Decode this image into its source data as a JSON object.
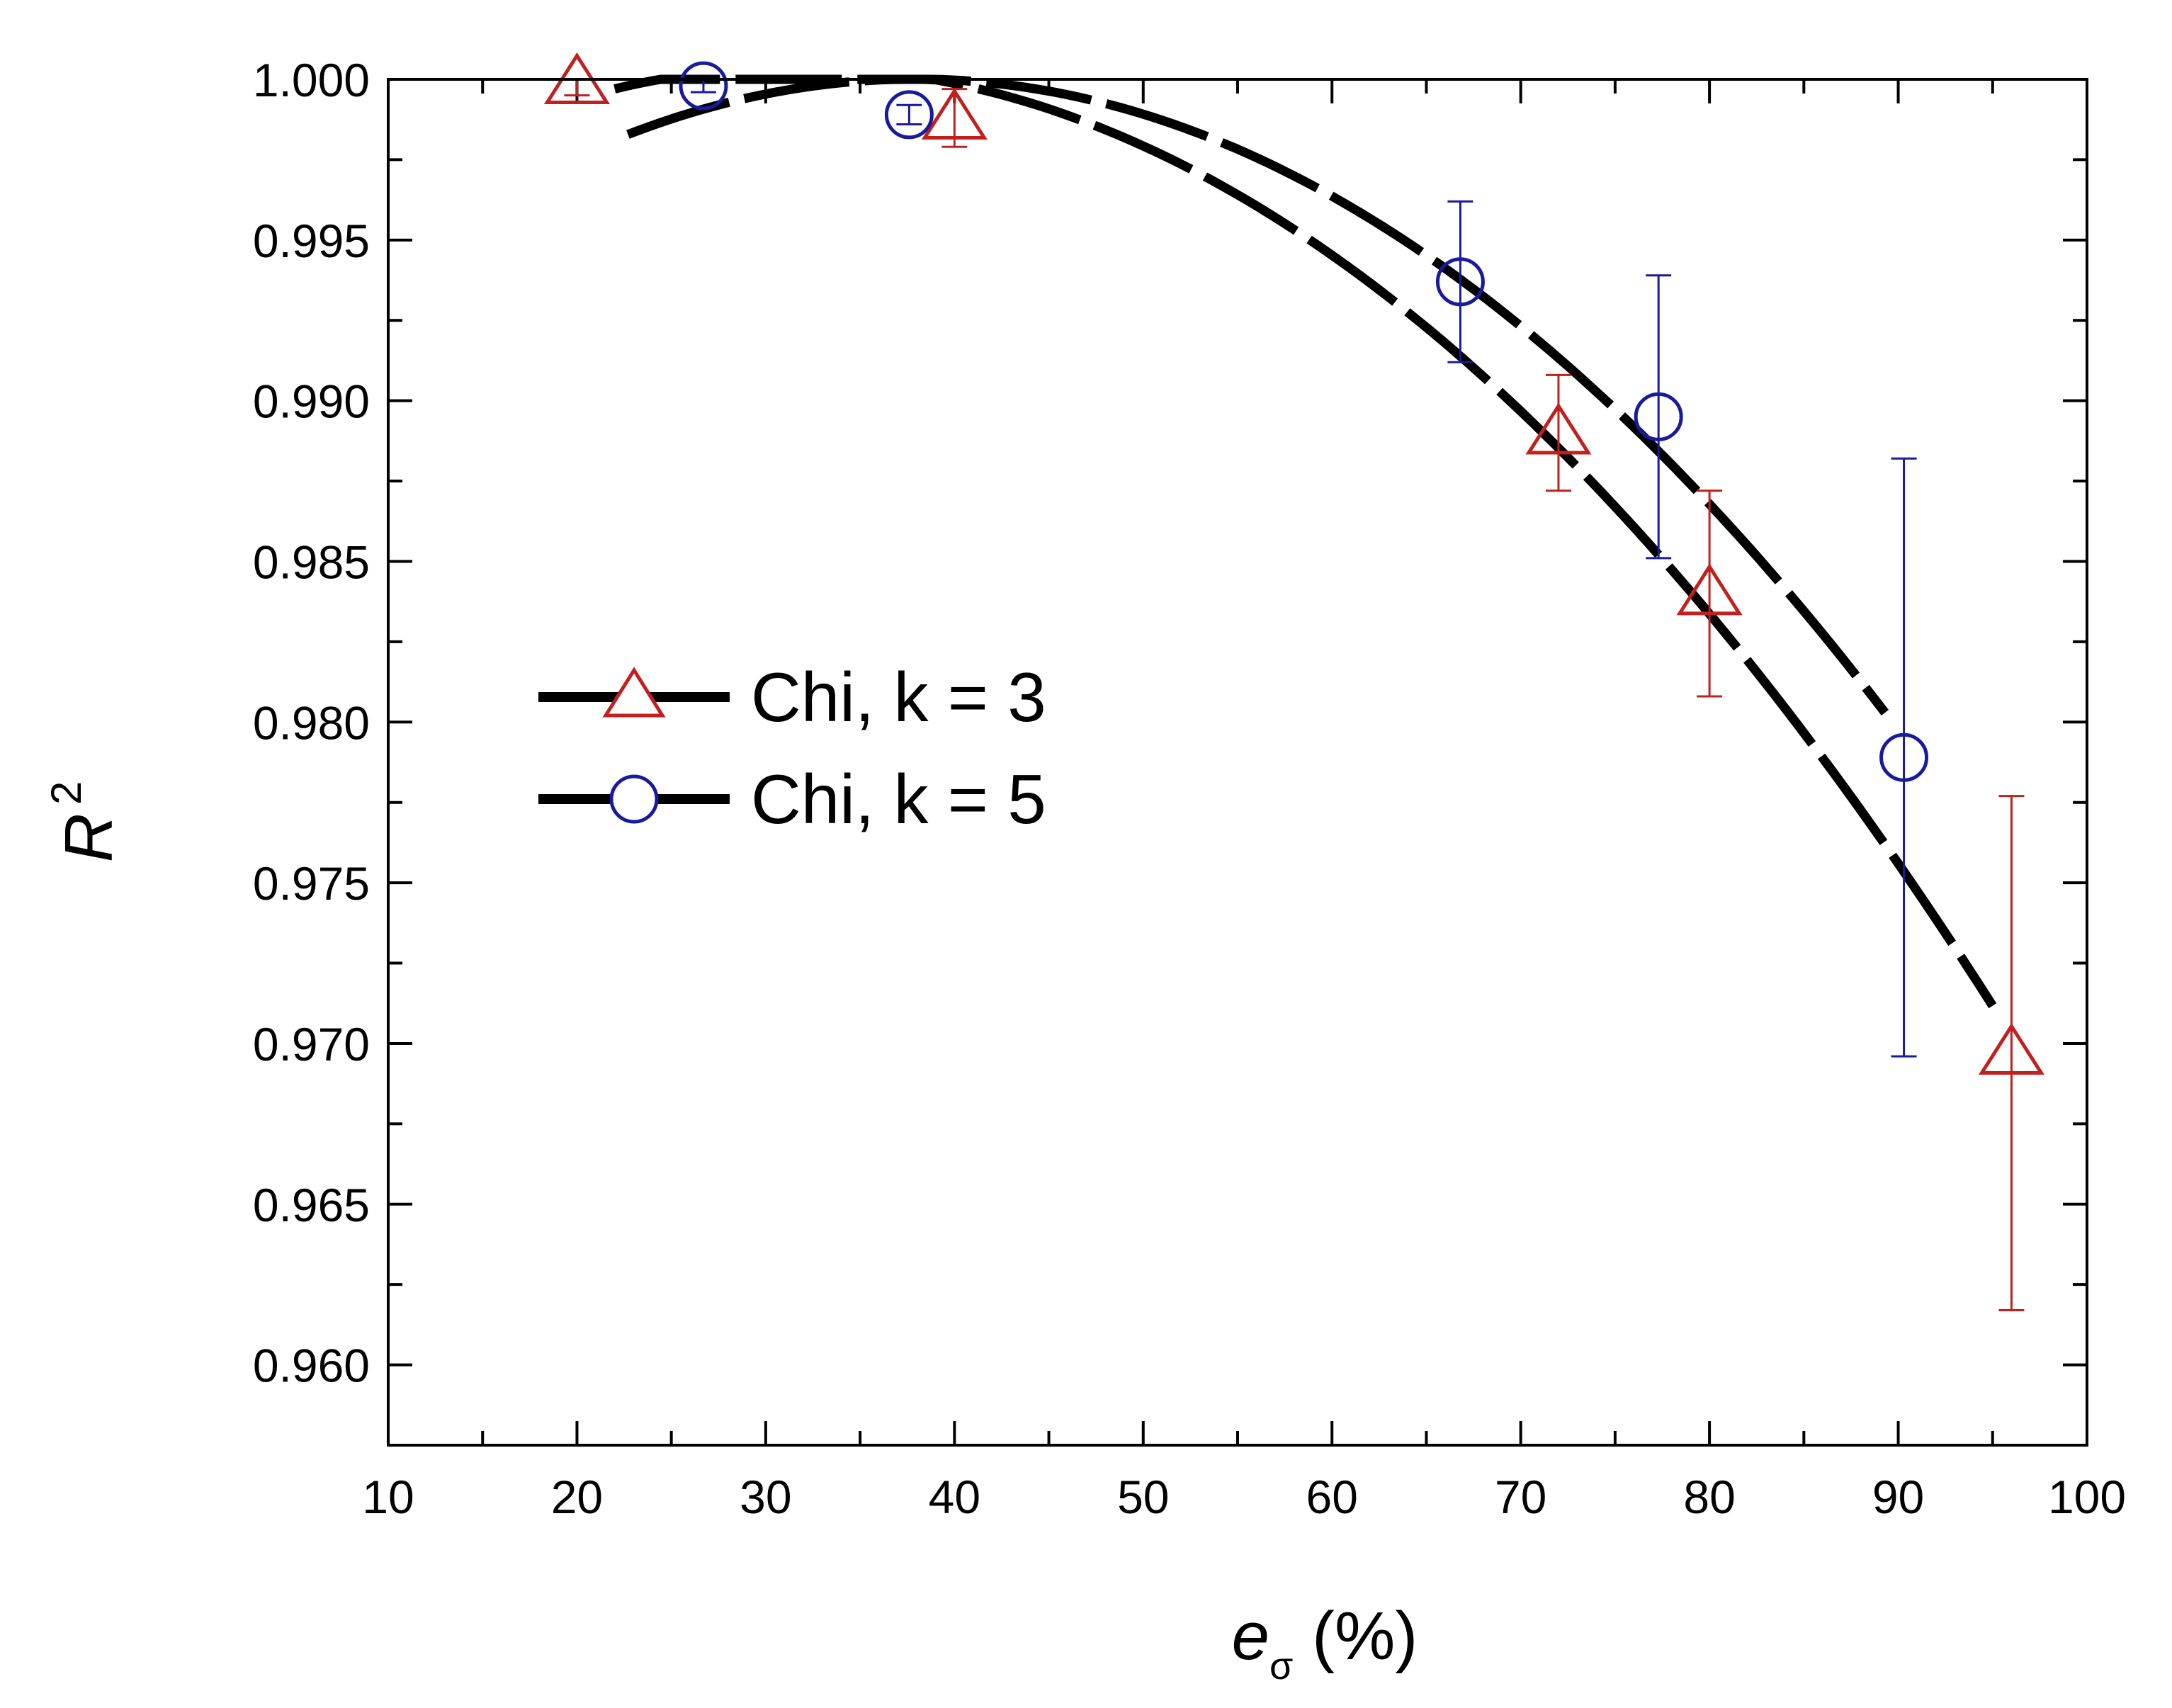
{
  "chart_data": {
    "type": "scatter",
    "title": "",
    "xlabel": {
      "var": "e",
      "sub": "σ",
      "unit": " (%)"
    },
    "ylabel": {
      "var": "R",
      "sup": "2"
    },
    "xlim": [
      10,
      100
    ],
    "ylim": [
      0.9575,
      1.0
    ],
    "xticks": [
      10,
      20,
      30,
      40,
      50,
      60,
      70,
      80,
      90,
      100
    ],
    "yticks": [
      0.96,
      0.965,
      0.97,
      0.975,
      0.98,
      0.985,
      0.99,
      0.995,
      1.0
    ],
    "ytick_labels": [
      "0.960",
      "0.965",
      "0.970",
      "0.975",
      "0.980",
      "0.985",
      "0.990",
      "0.995",
      "1.000"
    ],
    "legend_position": "center-left",
    "series": [
      {
        "name": "Chi, k = 3",
        "marker": "triangle",
        "marker_color": "#c0201e",
        "line_color": "#000000",
        "points": [
          {
            "x": 20.0,
            "y": 0.9999,
            "yerr": 0.0004
          },
          {
            "x": 40.0,
            "y": 0.9988,
            "yerr": 0.0009
          },
          {
            "x": 72.0,
            "y": 0.989,
            "yerr": 0.0018
          },
          {
            "x": 80.0,
            "y": 0.984,
            "yerr": 0.0032
          },
          {
            "x": 96.0,
            "y": 0.9697,
            "yerr": 0.008
          }
        ]
      },
      {
        "name": "Chi, k = 5",
        "marker": "circle",
        "marker_color": "#1a1a9c",
        "line_color": "#000000",
        "points": [
          {
            "x": 26.7,
            "y": 0.9998,
            "yerr": 0.0002
          },
          {
            "x": 37.6,
            "y": 0.9989,
            "yerr": 0.0003
          },
          {
            "x": 66.8,
            "y": 0.9937,
            "yerr": 0.0025
          },
          {
            "x": 77.3,
            "y": 0.9895,
            "yerr": 0.0044
          },
          {
            "x": 90.3,
            "y": 0.9789,
            "yerr": 0.0093
          }
        ]
      }
    ]
  }
}
